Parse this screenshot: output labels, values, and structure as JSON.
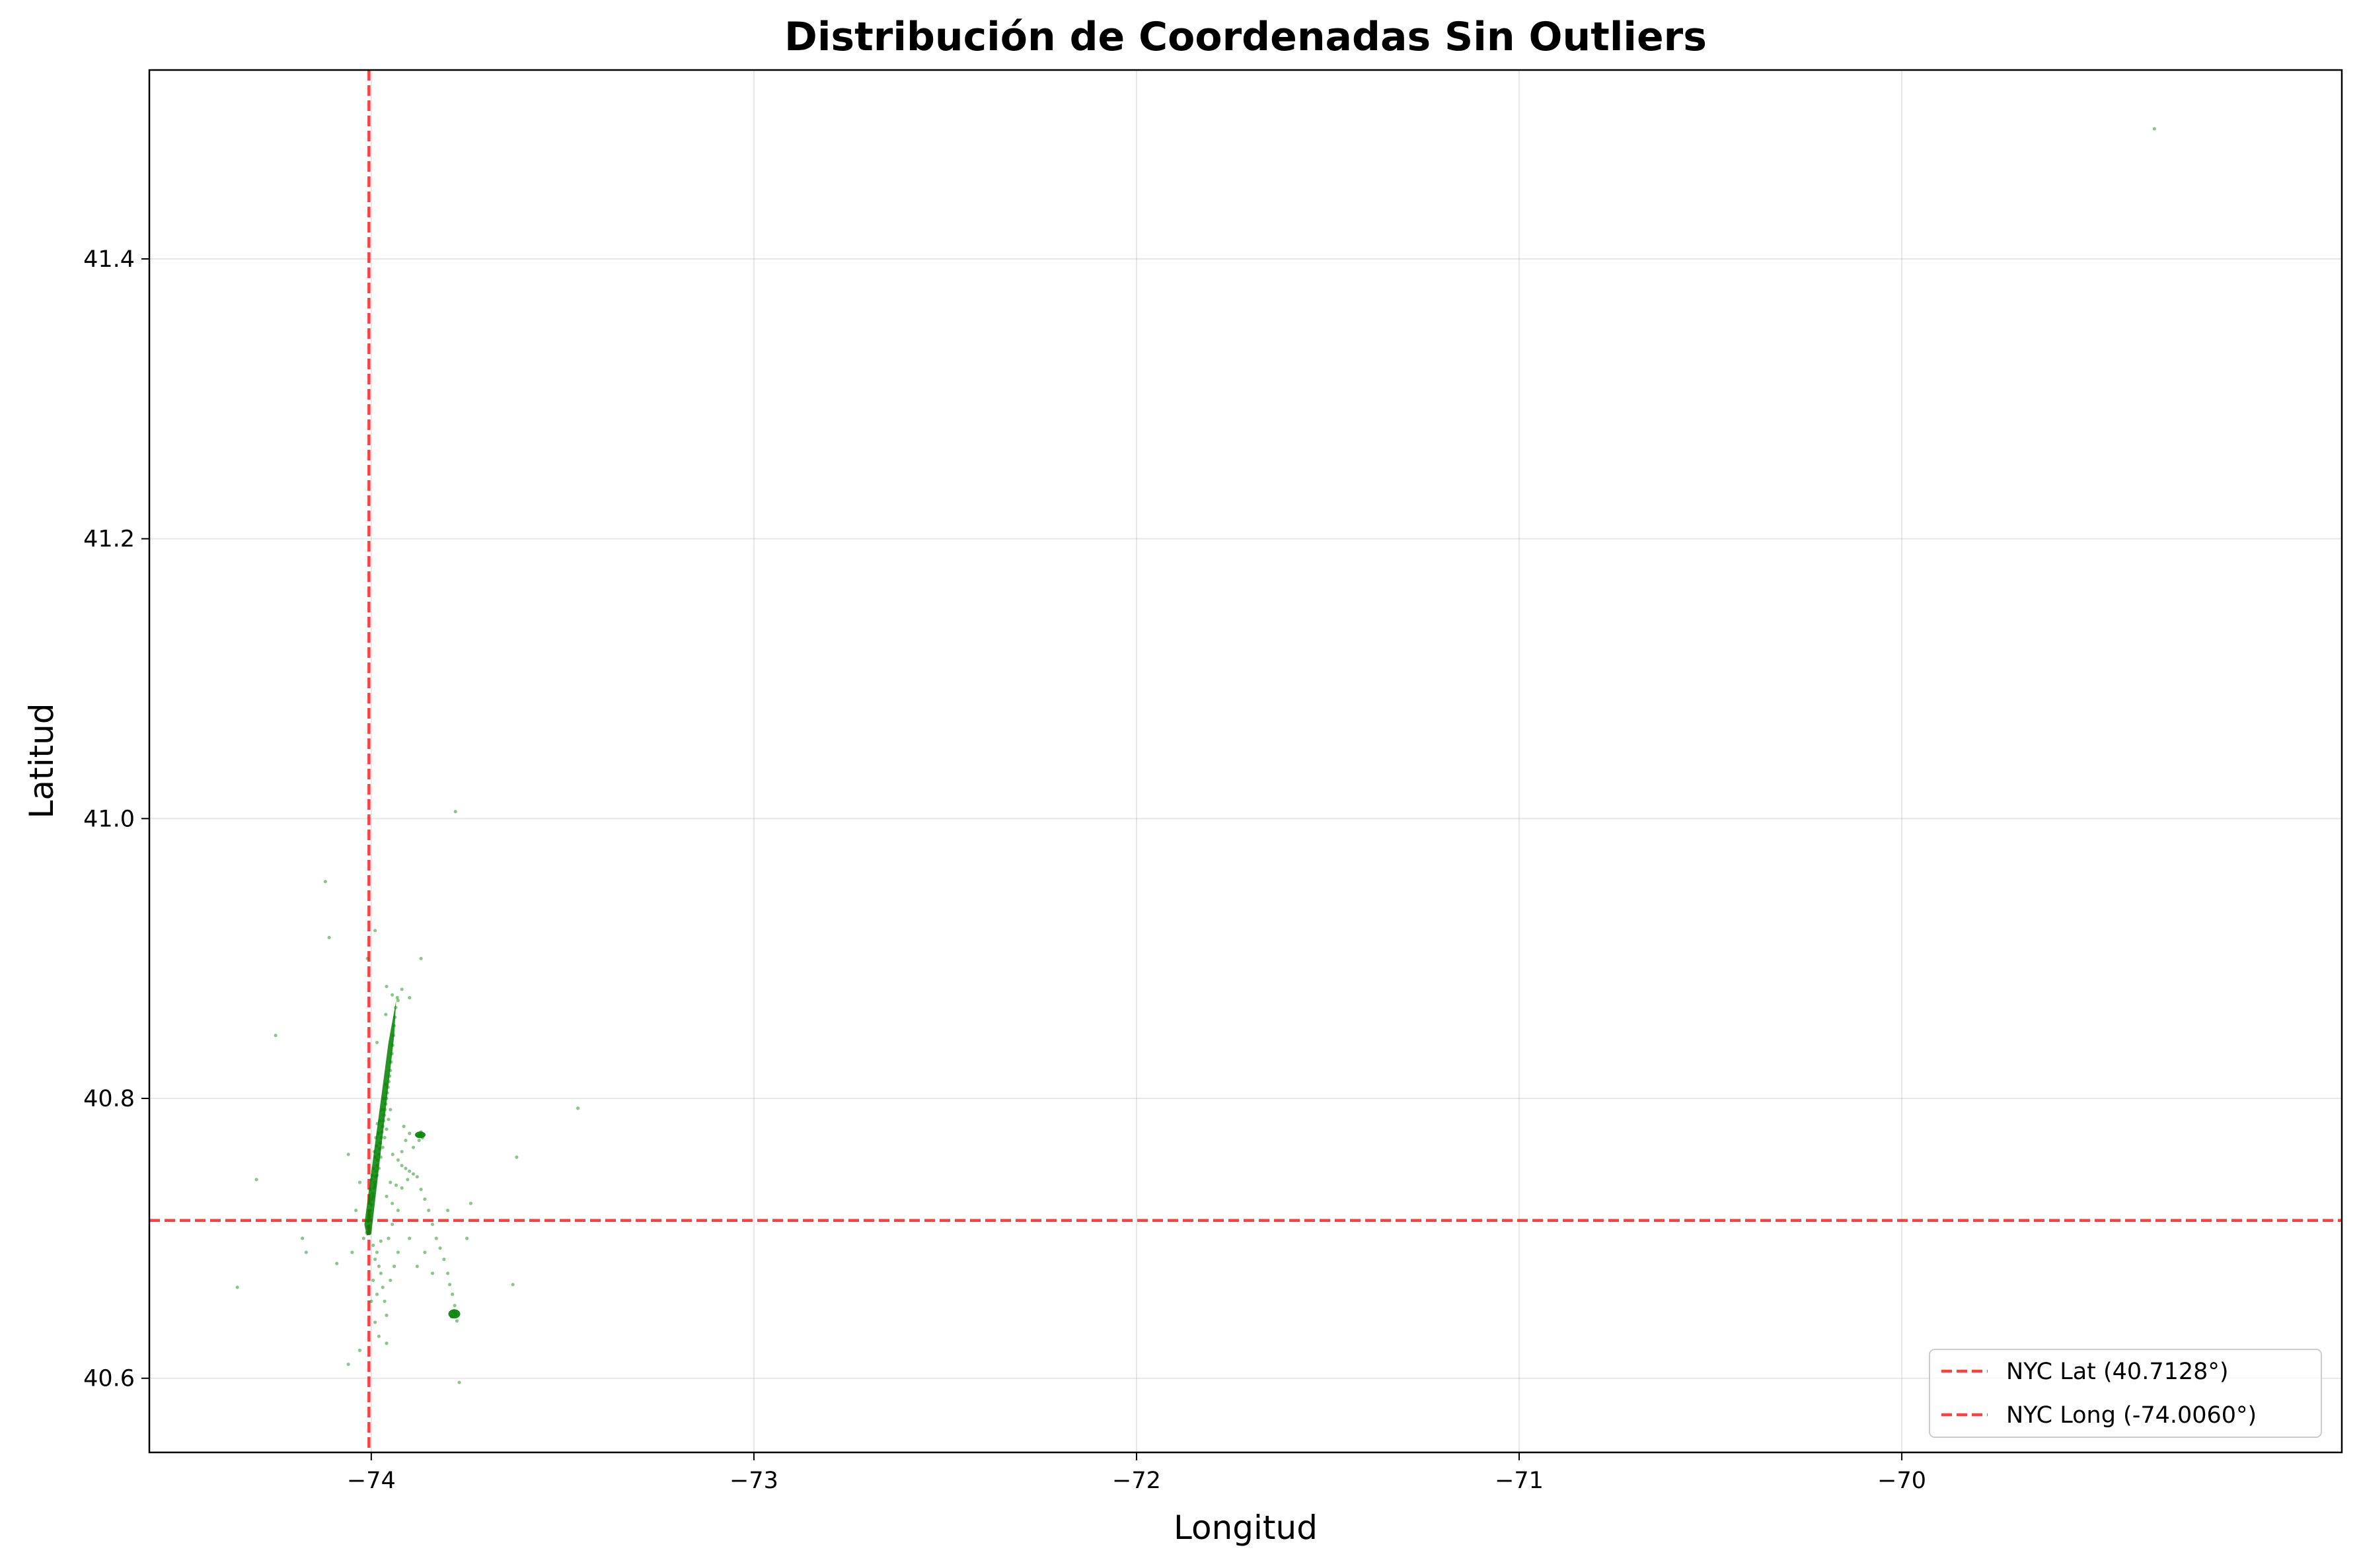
{
  "chart_data": {
    "type": "scatter",
    "title": "Distribución de Coordenadas Sin Outliers",
    "xlabel": "Longitud",
    "ylabel": "Latitud",
    "xlim": [
      -74.58,
      -68.85
    ],
    "ylim": [
      40.547,
      41.535
    ],
    "xticks": [
      -74,
      -73,
      -72,
      -71,
      -70
    ],
    "xtick_labels": [
      "−74",
      "−73",
      "−72",
      "−71",
      "−70"
    ],
    "yticks": [
      40.6,
      40.8,
      41.0,
      41.2,
      41.4
    ],
    "ytick_labels": [
      "40.6",
      "40.8",
      "41.0",
      "41.2",
      "41.4"
    ],
    "grid": true,
    "point_color": "#008000",
    "reference_color": "#ff0000",
    "legend_position": "bottom-right",
    "reference_lines": [
      {
        "orientation": "horizontal",
        "value": 40.7128,
        "label": "NYC Lat (40.7128°)"
      },
      {
        "orientation": "vertical",
        "value": -74.006,
        "label": "NYC Long (-74.0060°)"
      }
    ],
    "points": [
      [
        -74.012,
        40.704
      ],
      [
        -74.01,
        40.708
      ],
      [
        -74.008,
        40.712
      ],
      [
        -74.005,
        40.716
      ],
      [
        -74.003,
        40.72
      ],
      [
        -74.0,
        40.724
      ],
      [
        -73.998,
        40.728
      ],
      [
        -73.996,
        40.732
      ],
      [
        -73.993,
        40.736
      ],
      [
        -73.991,
        40.74
      ],
      [
        -73.989,
        40.744
      ],
      [
        -73.987,
        40.748
      ],
      [
        -73.985,
        40.752
      ],
      [
        -73.983,
        40.756
      ],
      [
        -73.98,
        40.76
      ],
      [
        -73.978,
        40.764
      ],
      [
        -73.976,
        40.768
      ],
      [
        -73.974,
        40.772
      ],
      [
        -73.972,
        40.776
      ],
      [
        -73.97,
        40.78
      ],
      [
        -73.968,
        40.784
      ],
      [
        -73.966,
        40.788
      ],
      [
        -73.964,
        40.792
      ],
      [
        -73.962,
        40.796
      ],
      [
        -73.96,
        40.8
      ],
      [
        -73.958,
        40.804
      ],
      [
        -73.956,
        40.808
      ],
      [
        -73.954,
        40.812
      ],
      [
        -73.952,
        40.816
      ],
      [
        -73.95,
        40.82
      ],
      [
        -73.948,
        40.826
      ],
      [
        -73.946,
        40.832
      ],
      [
        -73.944,
        40.838
      ],
      [
        -73.942,
        40.845
      ],
      [
        -73.94,
        40.852
      ],
      [
        -73.938,
        40.858
      ],
      [
        -73.936,
        40.865
      ],
      [
        -73.932,
        40.872
      ],
      [
        -73.995,
        40.73
      ],
      [
        -73.99,
        40.738
      ],
      [
        -73.985,
        40.745
      ],
      [
        -73.98,
        40.75
      ],
      [
        -73.975,
        40.758
      ],
      [
        -73.97,
        40.765
      ],
      [
        -73.965,
        40.772
      ],
      [
        -73.96,
        40.778
      ],
      [
        -73.955,
        40.785
      ],
      [
        -73.95,
        40.792
      ],
      [
        -74.0,
        40.742
      ],
      [
        -73.994,
        40.75
      ],
      [
        -73.99,
        40.758
      ],
      [
        -73.986,
        40.766
      ],
      [
        -73.982,
        40.775
      ],
      [
        -73.978,
        40.784
      ],
      [
        -73.972,
        40.792
      ],
      [
        -73.968,
        40.8
      ],
      [
        -73.962,
        40.81
      ],
      [
        -74.003,
        40.735
      ],
      [
        -73.998,
        40.745
      ],
      [
        -73.992,
        40.762
      ],
      [
        -73.988,
        40.772
      ],
      [
        -73.984,
        40.782
      ],
      [
        -73.944,
        40.76
      ],
      [
        -73.93,
        40.756
      ],
      [
        -73.92,
        40.752
      ],
      [
        -73.91,
        40.75
      ],
      [
        -73.9,
        40.748
      ],
      [
        -73.89,
        40.746
      ],
      [
        -73.88,
        40.744
      ],
      [
        -73.95,
        40.74
      ],
      [
        -73.935,
        40.738
      ],
      [
        -73.92,
        40.736
      ],
      [
        -73.905,
        40.742
      ],
      [
        -73.96,
        40.73
      ],
      [
        -73.945,
        40.725
      ],
      [
        -73.93,
        40.72
      ],
      [
        -73.872,
        40.774
      ],
      [
        -73.866,
        40.772
      ],
      [
        -73.875,
        40.77
      ],
      [
        -73.87,
        40.776
      ],
      [
        -73.878,
        40.773
      ],
      [
        -73.9,
        40.775
      ],
      [
        -73.91,
        40.77
      ],
      [
        -73.89,
        40.765
      ],
      [
        -73.92,
        40.762
      ],
      [
        -73.915,
        40.78
      ],
      [
        -73.985,
        40.69
      ],
      [
        -73.98,
        40.68
      ],
      [
        -73.975,
        40.675
      ],
      [
        -73.99,
        40.685
      ],
      [
        -73.995,
        40.695
      ],
      [
        -73.97,
        40.665
      ],
      [
        -73.965,
        40.655
      ],
      [
        -73.96,
        40.645
      ],
      [
        -73.975,
        40.698
      ],
      [
        -73.95,
        40.67
      ],
      [
        -73.94,
        40.68
      ],
      [
        -73.93,
        40.69
      ],
      [
        -73.955,
        40.7
      ],
      [
        -73.945,
        40.71
      ],
      [
        -73.985,
        40.66
      ],
      [
        -73.995,
        40.67
      ],
      [
        -73.99,
        40.64
      ],
      [
        -73.98,
        40.63
      ],
      [
        -73.96,
        40.625
      ],
      [
        -74.0,
        40.655
      ],
      [
        -73.78,
        40.646
      ],
      [
        -73.785,
        40.648
      ],
      [
        -73.79,
        40.644
      ],
      [
        -73.776,
        40.641
      ],
      [
        -73.782,
        40.652
      ],
      [
        -73.788,
        40.66
      ],
      [
        -73.795,
        40.667
      ],
      [
        -73.8,
        40.675
      ],
      [
        -73.81,
        40.685
      ],
      [
        -73.82,
        40.693
      ],
      [
        -73.83,
        40.7
      ],
      [
        -73.84,
        40.71
      ],
      [
        -73.85,
        40.72
      ],
      [
        -73.86,
        40.728
      ],
      [
        -73.87,
        40.735
      ],
      [
        -73.88,
        40.68
      ],
      [
        -73.86,
        40.69
      ],
      [
        -73.9,
        40.7
      ],
      [
        -73.84,
        40.675
      ],
      [
        -74.03,
        40.74
      ],
      [
        -74.04,
        40.72
      ],
      [
        -74.06,
        40.76
      ],
      [
        -74.02,
        40.7
      ],
      [
        -74.05,
        40.69
      ],
      [
        -74.09,
        40.682
      ],
      [
        -74.17,
        40.69
      ],
      [
        -74.18,
        40.7
      ],
      [
        -74.03,
        40.62
      ],
      [
        -74.06,
        40.61
      ],
      [
        -74.25,
        40.845
      ],
      [
        -74.12,
        40.955
      ],
      [
        -74.11,
        40.915
      ],
      [
        -74.3,
        40.742
      ],
      [
        -74.35,
        40.665
      ],
      [
        -74.01,
        40.9
      ],
      [
        -73.99,
        40.92
      ],
      [
        -73.96,
        40.88
      ],
      [
        -73.92,
        40.878
      ],
      [
        -73.9,
        40.872
      ],
      [
        -73.87,
        40.9
      ],
      [
        -73.93,
        40.87
      ],
      [
        -73.945,
        40.874
      ],
      [
        -73.962,
        40.86
      ],
      [
        -73.985,
        40.84
      ],
      [
        -73.78,
        41.005
      ],
      [
        -73.46,
        40.793
      ],
      [
        -73.62,
        40.758
      ],
      [
        -73.63,
        40.667
      ],
      [
        -73.77,
        40.597
      ],
      [
        -73.8,
        40.72
      ],
      [
        -73.74,
        40.725
      ],
      [
        -73.75,
        40.7
      ],
      [
        -69.34,
        41.493
      ]
    ]
  }
}
